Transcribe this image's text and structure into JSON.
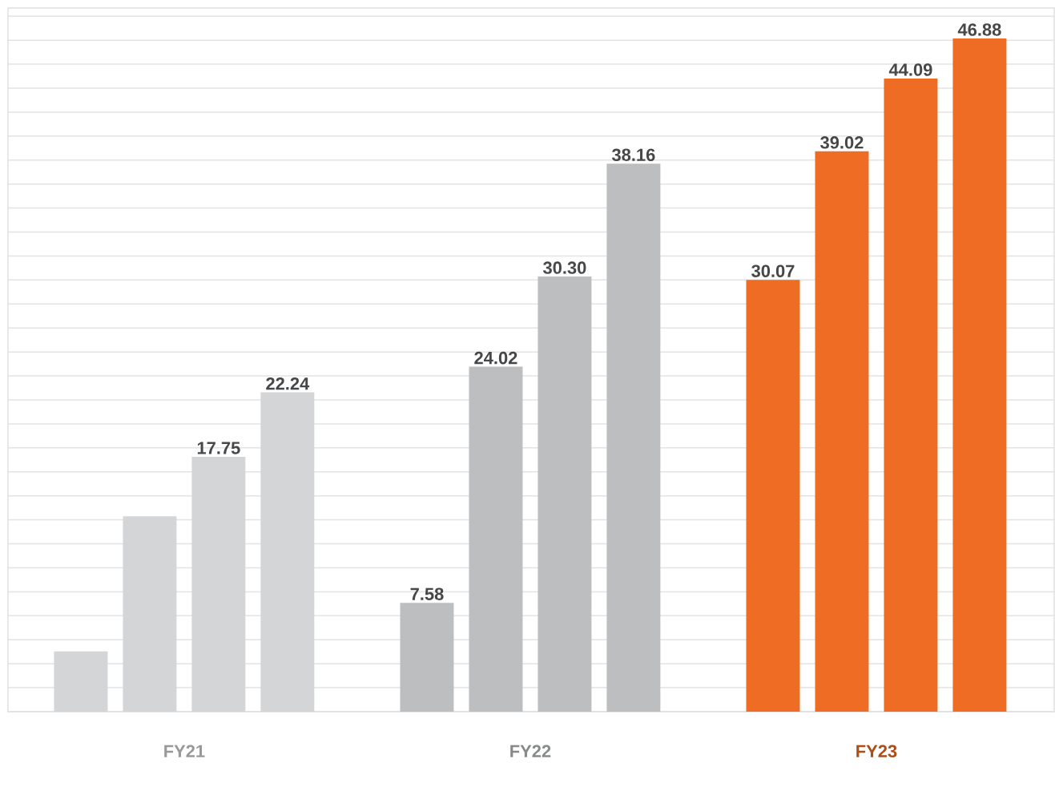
{
  "chart_data": {
    "type": "bar",
    "categories": [
      "FY21",
      "FY22",
      "FY23"
    ],
    "series": [
      {
        "colors": [
          "#d4d5d7",
          "#bdbec0",
          "#ee6c23"
        ],
        "values": [
          4.2,
          7.58,
          30.07
        ],
        "value_labels": [
          null,
          "7.58",
          "30.07"
        ]
      },
      {
        "colors": [
          "#d4d5d7",
          "#bdbec0",
          "#ee6c23"
        ],
        "values": [
          13.6,
          24.02,
          39.02
        ],
        "value_labels": [
          null,
          "24.02",
          "39.02"
        ]
      },
      {
        "colors": [
          "#d4d5d7",
          "#bdbec0",
          "#ee6c23"
        ],
        "values": [
          17.75,
          30.3,
          44.09
        ],
        "value_labels": [
          "17.75",
          "30.30",
          "44.09"
        ]
      },
      {
        "colors": [
          "#d4d5d7",
          "#bdbec0",
          "#ee6c23"
        ],
        "values": [
          22.24,
          38.16,
          46.88
        ],
        "value_labels": [
          "22.24",
          "38.16",
          "46.88"
        ]
      }
    ],
    "ylim": [
      0,
      49
    ],
    "yticks": [
      {
        "value": 0,
        "label": null
      },
      {
        "value": 1.67,
        "label": null
      },
      {
        "value": 3.34,
        "label": null
      },
      {
        "value": 5.01,
        "label": null
      },
      {
        "value": 6.68,
        "label": null
      },
      {
        "value": 8.35,
        "label": null
      },
      {
        "value": 10.02,
        "label": null
      },
      {
        "value": 11.69,
        "label": null
      },
      {
        "value": 13.36,
        "label": null
      },
      {
        "value": 15.03,
        "label": null
      },
      {
        "value": 16.7,
        "label": null
      },
      {
        "value": 18.37,
        "label": null
      },
      {
        "value": 20.04,
        "label": null
      },
      {
        "value": 21.71,
        "label": null
      },
      {
        "value": 23.38,
        "label": null
      },
      {
        "value": 25.05,
        "label": null
      },
      {
        "value": 26.72,
        "label": null
      },
      {
        "value": 28.39,
        "label": null
      },
      {
        "value": 30.06,
        "label": null
      },
      {
        "value": 31.73,
        "label": null
      },
      {
        "value": 33.4,
        "label": null
      },
      {
        "value": 35.07,
        "label": null
      },
      {
        "value": 36.74,
        "label": null
      },
      {
        "value": 38.41,
        "label": null
      },
      {
        "value": 40.08,
        "label": null
      },
      {
        "value": 41.75,
        "label": null
      },
      {
        "value": 43.42,
        "label": null
      },
      {
        "value": 45.09,
        "label": null
      },
      {
        "value": 46.76,
        "label": null
      },
      {
        "value": 48.43,
        "label": null
      }
    ],
    "grid": "y",
    "tick_labels": "x"
  }
}
